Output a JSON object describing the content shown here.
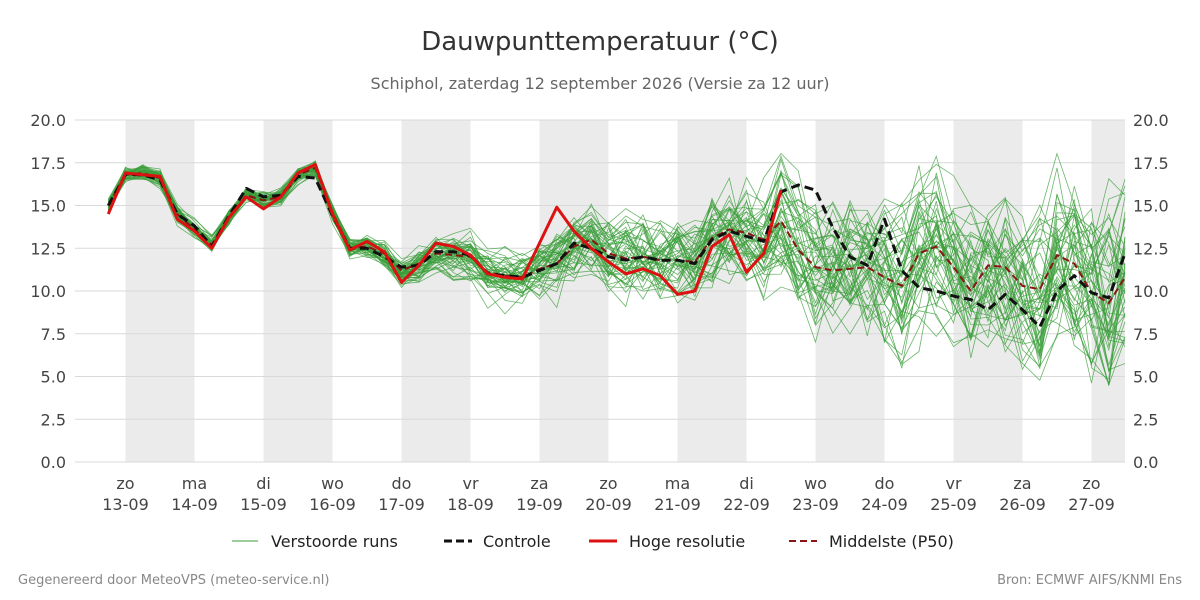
{
  "chart_data": {
    "type": "line",
    "title": "Dauwpunttemperatuur (°C)",
    "subtitle": "Schiphol, zaterdag 12 september 2026 (Versie za 12 uur)",
    "x_ticks": [
      {
        "day": "zo",
        "date": "13-09"
      },
      {
        "day": "ma",
        "date": "14-09"
      },
      {
        "day": "di",
        "date": "15-09"
      },
      {
        "day": "wo",
        "date": "16-09"
      },
      {
        "day": "do",
        "date": "17-09"
      },
      {
        "day": "vr",
        "date": "18-09"
      },
      {
        "day": "za",
        "date": "19-09"
      },
      {
        "day": "zo",
        "date": "20-09"
      },
      {
        "day": "ma",
        "date": "21-09"
      },
      {
        "day": "di",
        "date": "22-09"
      },
      {
        "day": "wo",
        "date": "23-09"
      },
      {
        "day": "do",
        "date": "24-09"
      },
      {
        "day": "vr",
        "date": "25-09"
      },
      {
        "day": "za",
        "date": "26-09"
      },
      {
        "day": "zo",
        "date": "27-09"
      }
    ],
    "y_ticks": [
      "0.0",
      "2.5",
      "5.0",
      "7.5",
      "10.0",
      "12.5",
      "15.0",
      "17.5",
      "20.0"
    ],
    "ylim": [
      0,
      20
    ],
    "grid": true,
    "legend_position": "bottom",
    "series": [
      {
        "name": "Hoge resolutie",
        "color": "#dd1111",
        "x": [
          -0.25,
          0.0,
          0.25,
          0.5,
          0.75,
          1.0,
          1.25,
          1.5,
          1.75,
          2.0,
          2.25,
          2.5,
          2.75,
          3.0,
          3.25,
          3.5,
          3.75,
          4.0,
          4.25,
          4.5,
          4.75,
          5.0,
          5.25,
          5.5,
          5.75,
          6.0,
          6.25,
          6.5,
          6.75,
          7.0,
          7.25,
          7.5,
          7.75,
          8.0,
          8.25,
          8.5,
          8.75,
          9.0,
          9.25,
          9.5
        ],
        "y": [
          14.5,
          16.9,
          16.8,
          16.7,
          14.2,
          13.5,
          12.5,
          14.3,
          15.5,
          14.8,
          15.5,
          16.9,
          17.4,
          14.5,
          12.4,
          12.9,
          12.3,
          10.5,
          11.5,
          12.8,
          12.6,
          12.1,
          11.0,
          10.8,
          10.7,
          12.8,
          14.9,
          13.5,
          12.5,
          11.7,
          11.0,
          11.3,
          10.9,
          9.8,
          10.0,
          12.6,
          13.3,
          11.1,
          12.2,
          15.9
        ]
      },
      {
        "name": "Controle",
        "color": "#111111",
        "x": [
          -0.25,
          0.0,
          0.25,
          0.5,
          0.75,
          1.0,
          1.25,
          1.5,
          1.75,
          2.0,
          2.25,
          2.5,
          2.75,
          3.0,
          3.25,
          3.5,
          3.75,
          4.0,
          4.25,
          4.5,
          4.75,
          5.0,
          5.25,
          5.5,
          5.75,
          6.0,
          6.25,
          6.5,
          6.75,
          7.0,
          7.25,
          7.5,
          7.75,
          8.0,
          8.25,
          8.5,
          8.75,
          9.0,
          9.25,
          9.5,
          9.75,
          10.0,
          10.25,
          10.5,
          10.75,
          11.0,
          11.25,
          11.5,
          11.75,
          12.0,
          12.25,
          12.5,
          12.75,
          13.0,
          13.25,
          13.5,
          13.75,
          14.0,
          14.25,
          14.5
        ],
        "y": [
          15.0,
          16.8,
          16.8,
          16.5,
          14.5,
          13.8,
          12.6,
          14.4,
          16.0,
          15.5,
          15.6,
          16.7,
          16.6,
          14.4,
          12.5,
          12.5,
          12.0,
          11.4,
          11.5,
          12.3,
          12.3,
          12.1,
          11.0,
          10.9,
          10.8,
          11.2,
          11.6,
          12.8,
          12.5,
          12.0,
          11.8,
          12.0,
          11.8,
          11.8,
          11.6,
          13.0,
          13.5,
          13.2,
          12.9,
          15.8,
          16.2,
          15.9,
          13.7,
          12.0,
          11.5,
          14.2,
          11.2,
          10.2,
          10.0,
          9.7,
          9.5,
          8.9,
          9.8,
          8.9,
          7.9,
          10.0,
          10.9,
          9.9,
          9.6,
          12.2
        ]
      },
      {
        "name": "Middelste (P50)",
        "color": "#8b1414",
        "x": [
          -0.25,
          0.0,
          0.25,
          0.5,
          0.75,
          1.0,
          1.25,
          1.5,
          1.75,
          2.0,
          2.25,
          2.5,
          2.75,
          3.0,
          3.25,
          3.5,
          3.75,
          4.0,
          4.25,
          4.5,
          4.75,
          5.0,
          5.25,
          5.5,
          5.75,
          6.0,
          6.25,
          6.5,
          6.75,
          7.0,
          7.25,
          7.5,
          7.75,
          8.0,
          8.25,
          8.5,
          8.75,
          9.0,
          9.25,
          9.5,
          9.75,
          10.0,
          10.25,
          10.5,
          10.75,
          11.0,
          11.25,
          11.5,
          11.75,
          12.0,
          12.25,
          12.5,
          12.75,
          13.0,
          13.25,
          13.5,
          13.75,
          14.0,
          14.25,
          14.5
        ],
        "y": [
          15.0,
          16.8,
          16.9,
          16.6,
          14.5,
          13.6,
          12.7,
          14.3,
          15.6,
          15.3,
          15.5,
          16.8,
          17.2,
          14.6,
          12.5,
          12.6,
          12.2,
          11.2,
          11.6,
          12.2,
          12.1,
          12.0,
          11.1,
          10.9,
          10.8,
          11.3,
          11.6,
          12.6,
          13.0,
          12.2,
          11.9,
          12.0,
          11.8,
          11.8,
          11.7,
          13.1,
          13.6,
          13.4,
          13.0,
          14.1,
          12.4,
          11.4,
          11.2,
          11.3,
          11.4,
          10.8,
          10.3,
          12.2,
          12.6,
          11.4,
          10.0,
          11.5,
          11.4,
          10.3,
          10.1,
          12.1,
          11.6,
          9.9,
          9.3,
          10.8
        ]
      }
    ],
    "ensemble": {
      "name": "Verstoorde runs",
      "color": "#3a9e3a",
      "member_count": 50
    }
  },
  "legend": [
    {
      "label": "Verstoorde runs",
      "style": "thin-green"
    },
    {
      "label": "Controle",
      "style": "black-dashed"
    },
    {
      "label": "Hoge resolutie",
      "style": "red-solid"
    },
    {
      "label": "Middelste (P50)",
      "style": "darkred-dashed"
    }
  ],
  "footer": {
    "left": "Gegenereerd door MeteoVPS (meteo-service.nl)",
    "right": "Bron: ECMWF AIFS/KNMI Ens"
  }
}
